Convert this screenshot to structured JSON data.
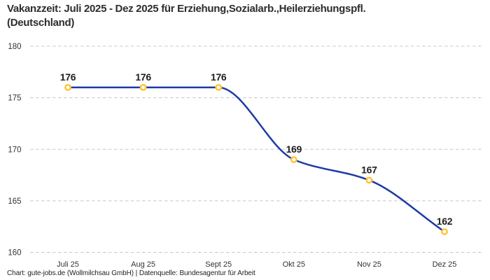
{
  "header": {
    "title": "Vakanzzeit: Juli 2025 - Dez 2025 für Erziehung,Sozialarb.,Heilerziehungspfl. (Deutschland)"
  },
  "footer": {
    "credit": "Chart: gute-jobs.de (Wollmilchsau GmbH) | Datenquelle: Bundesagentur für Arbeit"
  },
  "chart_data": {
    "type": "line",
    "title": "Vakanzzeit: Juli 2025 - Dez 2025 für Erziehung,Sozialarb.,Heilerziehungspfl. (Deutschland)",
    "categories": [
      "Juli 25",
      "Aug 25",
      "Sept 25",
      "Okt 25",
      "Nov 25",
      "Dez 25"
    ],
    "series": [
      {
        "name": "Vakanzzeit",
        "values": [
          176,
          176,
          176,
          169,
          167,
          162
        ],
        "data_labels": [
          "176",
          "176",
          "176",
          "169",
          "167",
          "162"
        ]
      }
    ],
    "xlabel": "",
    "ylabel": "",
    "ylim": [
      160,
      180
    ],
    "yticks": [
      180,
      175,
      170,
      165,
      160
    ],
    "ytick_labels": [
      "180",
      "175",
      "170",
      "165",
      "160"
    ],
    "grid": "horizontal-dashed",
    "legend": "none",
    "curve": "monotone",
    "marker_shape": "open-circle"
  },
  "colors": {
    "background": "#ffffff",
    "line": "#1d3ba6",
    "marker_stroke": "#ffc233",
    "marker_fill": "#ffffff",
    "grid": "#c8c8c8",
    "axis_text": "#333333",
    "data_label_text": "#1f1f1f",
    "title_text": "#2d2d2d",
    "footer_text": "#222222"
  }
}
